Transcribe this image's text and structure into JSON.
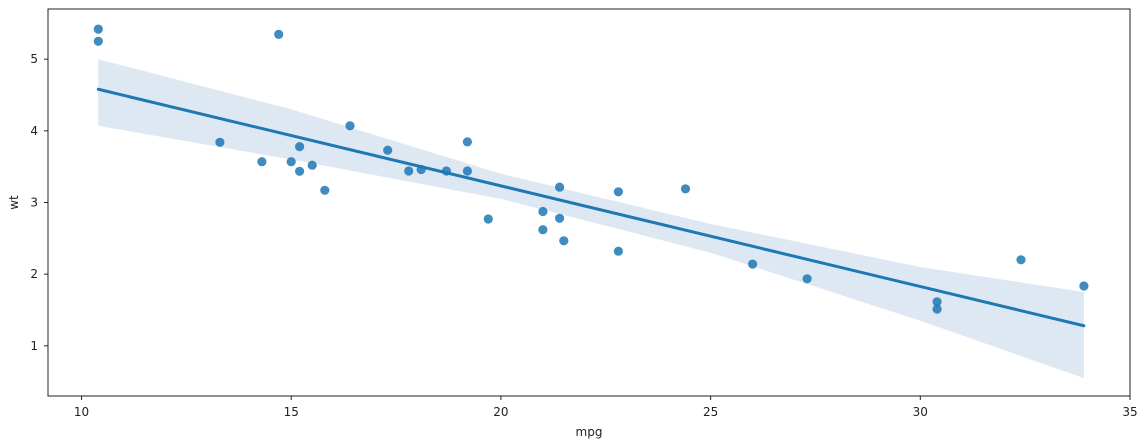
{
  "chart_data": {
    "type": "scatter",
    "xlabel": "mpg",
    "ylabel": "wt",
    "xlim": [
      9.2,
      35
    ],
    "ylim": [
      0.3,
      5.7
    ],
    "xticks": [
      10,
      15,
      20,
      25,
      30,
      35
    ],
    "yticks": [
      1,
      2,
      3,
      4,
      5
    ],
    "grid": false,
    "colors": {
      "points": "#1f77b4",
      "line": "#1f77b4",
      "band": "#dde8f3",
      "frame": "#222222"
    },
    "points": [
      {
        "x": 10.4,
        "y": 5.42
      },
      {
        "x": 10.4,
        "y": 5.25
      },
      {
        "x": 14.7,
        "y": 5.345
      },
      {
        "x": 13.3,
        "y": 3.84
      },
      {
        "x": 14.3,
        "y": 3.57
      },
      {
        "x": 15.0,
        "y": 3.57
      },
      {
        "x": 15.2,
        "y": 3.78
      },
      {
        "x": 15.2,
        "y": 3.435
      },
      {
        "x": 15.5,
        "y": 3.52
      },
      {
        "x": 15.8,
        "y": 3.17
      },
      {
        "x": 16.4,
        "y": 4.07
      },
      {
        "x": 17.3,
        "y": 3.73
      },
      {
        "x": 17.8,
        "y": 3.44
      },
      {
        "x": 18.1,
        "y": 3.46
      },
      {
        "x": 18.7,
        "y": 3.44
      },
      {
        "x": 19.2,
        "y": 3.44
      },
      {
        "x": 19.2,
        "y": 3.845
      },
      {
        "x": 19.7,
        "y": 2.77
      },
      {
        "x": 21.0,
        "y": 2.62
      },
      {
        "x": 21.0,
        "y": 2.875
      },
      {
        "x": 21.4,
        "y": 3.215
      },
      {
        "x": 21.4,
        "y": 2.78
      },
      {
        "x": 21.5,
        "y": 2.465
      },
      {
        "x": 22.8,
        "y": 2.32
      },
      {
        "x": 22.8,
        "y": 3.15
      },
      {
        "x": 24.4,
        "y": 3.19
      },
      {
        "x": 26.0,
        "y": 2.14
      },
      {
        "x": 27.3,
        "y": 1.935
      },
      {
        "x": 30.4,
        "y": 1.615
      },
      {
        "x": 30.4,
        "y": 1.513
      },
      {
        "x": 32.4,
        "y": 2.2
      },
      {
        "x": 33.9,
        "y": 1.835
      }
    ],
    "regression_line": {
      "x": [
        10.4,
        33.9
      ],
      "y": [
        4.58,
        1.28
      ]
    },
    "confidence_band": {
      "x": [
        10.4,
        15.0,
        20.0,
        25.0,
        30.0,
        33.9
      ],
      "upper": [
        5.0,
        4.3,
        3.4,
        2.7,
        2.1,
        1.75
      ],
      "lower": [
        4.07,
        3.6,
        3.05,
        2.3,
        1.35,
        0.55
      ]
    }
  }
}
